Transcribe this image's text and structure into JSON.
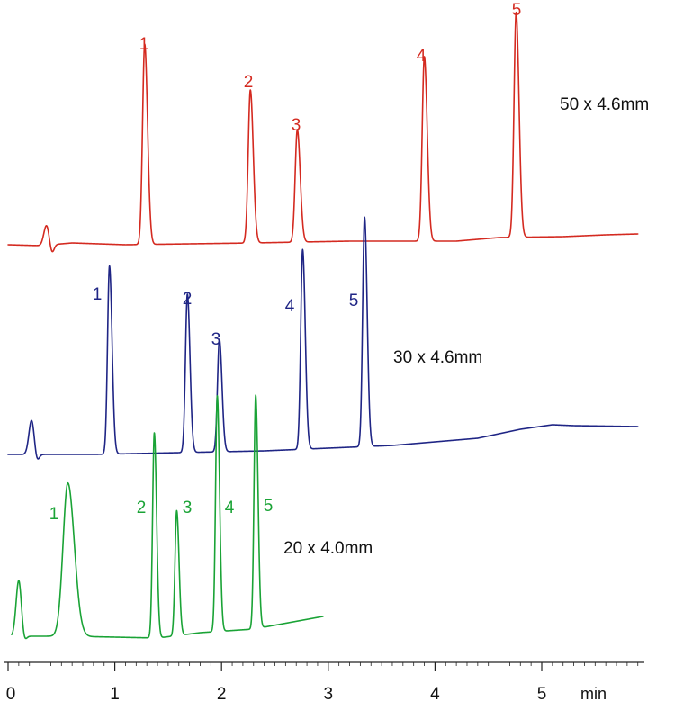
{
  "chart_data": {
    "type": "line",
    "title": "",
    "xlabel": "min",
    "ylabel": "",
    "xlim": [
      0,
      5.9
    ],
    "x_ticks": [
      "0",
      "1",
      "2",
      "3",
      "4",
      "5"
    ],
    "grid": false,
    "legend": "none",
    "series": [
      {
        "name": "50 x 4.6mm",
        "color": "#d42a20",
        "x_end": 5.9,
        "peaks": [
          {
            "label": "1",
            "x": 1.28,
            "height": 0.89
          },
          {
            "label": "2",
            "x": 2.27,
            "height": 0.68
          },
          {
            "label": "3",
            "x": 2.71,
            "height": 0.5
          },
          {
            "label": "4",
            "x": 3.9,
            "height": 0.82
          },
          {
            "label": "5",
            "x": 4.76,
            "height": 1.0
          }
        ]
      },
      {
        "name": "30 x 4.6mm",
        "color": "#1f2585",
        "x_end": 5.9,
        "peaks": [
          {
            "label": "1",
            "x": 0.95,
            "height": 0.82
          },
          {
            "label": "2",
            "x": 1.68,
            "height": 0.69
          },
          {
            "label": "3",
            "x": 1.98,
            "height": 0.49
          },
          {
            "label": "4",
            "x": 2.76,
            "height": 0.87
          },
          {
            "label": "5",
            "x": 3.34,
            "height": 1.0
          }
        ]
      },
      {
        "name": "20 x 4.0mm",
        "color": "#1aa336",
        "x_end": 2.95,
        "peaks": [
          {
            "label": "1",
            "x": 0.56,
            "height": 0.65
          },
          {
            "label": "2",
            "x": 1.37,
            "height": 0.87
          },
          {
            "label": "3",
            "x": 1.58,
            "height": 0.53
          },
          {
            "label": "4",
            "x": 1.96,
            "height": 1.0
          },
          {
            "label": "5",
            "x": 2.32,
            "height": 0.99
          }
        ]
      }
    ]
  }
}
